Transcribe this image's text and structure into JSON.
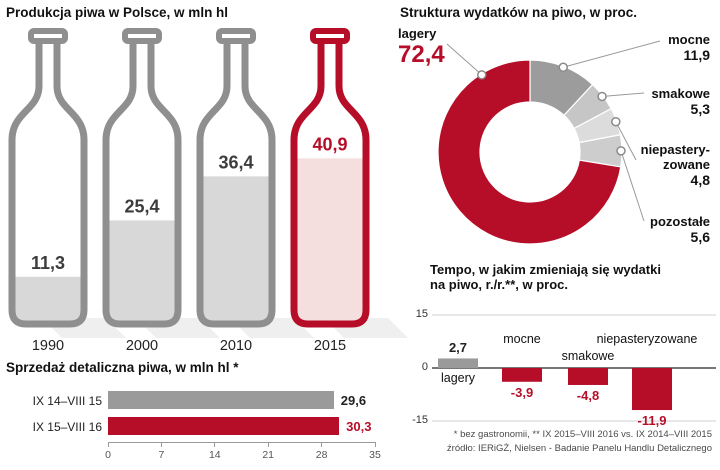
{
  "colors": {
    "red": "#b60e28",
    "pink": "#f5dede",
    "bottle_outline": "#8f8f8f",
    "bottle_fill": "#d8d8d8",
    "bar_gray": "#9a9a9a"
  },
  "production": {
    "title": "Produkcja piwa w Polsce, w mln hl",
    "bottles": [
      {
        "year": "1990",
        "value": 11.3,
        "value_label": "11,3",
        "highlight": false
      },
      {
        "year": "2000",
        "value": 25.4,
        "value_label": "25,4",
        "highlight": false
      },
      {
        "year": "2010",
        "value": 36.4,
        "value_label": "36,4",
        "highlight": false
      },
      {
        "year": "2015",
        "value": 40.9,
        "value_label": "40,9",
        "highlight": true
      }
    ]
  },
  "structure": {
    "title": "Struktura wydatków na piwo, w proc.",
    "segments": [
      {
        "label": "lagery",
        "value": 72.4,
        "value_label": "72,4",
        "color": "#b60e28"
      },
      {
        "label": "mocne",
        "value": 11.9,
        "value_label": "11,9",
        "color": "#9c9c9c"
      },
      {
        "label": "smakowe",
        "value": 5.3,
        "value_label": "5,3",
        "color": "#c6c6c6"
      },
      {
        "label": "niepasteryzowane",
        "value": 4.8,
        "value_label": "4,8",
        "color": "#dcdcdc",
        "label_lines": [
          "niepastery-",
          "zowane"
        ]
      },
      {
        "label": "pozostałe",
        "value": 5.6,
        "value_label": "5,6",
        "color": "#cdcdcd"
      }
    ]
  },
  "retail": {
    "title": "Sprzedaż detaliczna piwa, w mln hl *",
    "axis_max": 35,
    "axis_ticks": [
      "0",
      "7",
      "14",
      "21",
      "28",
      "35"
    ],
    "rows": [
      {
        "label": "IX 14–VIII 15",
        "value": 29.6,
        "value_label": "29,6",
        "highlight": false
      },
      {
        "label": "IX 15–VIII 16",
        "value": 30.3,
        "value_label": "30,3",
        "highlight": true
      }
    ]
  },
  "tempo": {
    "title_line1": "Tempo, w jakim zmieniają się wydatki",
    "title_line2": "na piwo, r./r.**, w proc.",
    "y_ticks": [
      "15",
      "0",
      "-15"
    ],
    "bars": [
      {
        "label": "lagery",
        "value": 2.7,
        "value_label": "2,7",
        "highlight": false
      },
      {
        "label": "mocne",
        "value": -3.9,
        "value_label": "-3,9",
        "highlight": true
      },
      {
        "label": "smakowe",
        "value": -4.8,
        "value_label": "-4,8",
        "highlight": true
      },
      {
        "label": "niepasteryzowane",
        "value": -11.9,
        "value_label": "-11,9",
        "highlight": true
      }
    ]
  },
  "footnotes": {
    "line1": "* bez gastronomii, ** IX 2015–VIII 2016 vs. IX 2014–VIII 2015",
    "line2": "źródło: IERiGŻ, Nielsen - Badanie Panelu Handlu Detalicznego"
  },
  "chart_data": [
    {
      "type": "bar",
      "title": "Produkcja piwa w Polsce, w mln hl",
      "categories": [
        "1990",
        "2000",
        "2010",
        "2015"
      ],
      "values": [
        11.3,
        25.4,
        36.4,
        40.9
      ],
      "xlabel": "",
      "ylabel": "mln hl",
      "note": "drawn as beer-bottle fill levels; 2015 highlighted in red"
    },
    {
      "type": "pie",
      "title": "Struktura wydatków na piwo, w proc.",
      "categories": [
        "lagery",
        "mocne",
        "smakowe",
        "niepasteryzowane",
        "pozostałe"
      ],
      "values": [
        72.4,
        11.9,
        5.3,
        4.8,
        5.6
      ],
      "note": "donut chart; lagery red, other segments gray; labels with leader lines"
    },
    {
      "type": "bar",
      "title": "Sprzedaż detaliczna piwa, w mln hl *",
      "categories": [
        "IX 14–VIII 15",
        "IX 15–VIII 16"
      ],
      "values": [
        29.6,
        30.3
      ],
      "xlim": [
        0,
        35
      ],
      "x_ticks": [
        0,
        7,
        14,
        21,
        28,
        35
      ],
      "orientation": "horizontal",
      "note": "second bar highlighted in red"
    },
    {
      "type": "bar",
      "title": "Tempo, w jakim zmieniają się wydatki na piwo, r./r.**, w proc.",
      "categories": [
        "lagery",
        "mocne",
        "smakowe",
        "niepasteryzowane"
      ],
      "values": [
        2.7,
        -3.9,
        -4.8,
        -11.9
      ],
      "ylim": [
        -15,
        15
      ],
      "y_ticks": [
        15,
        0,
        -15
      ],
      "note": "positive bar gray, negative bars red"
    }
  ]
}
